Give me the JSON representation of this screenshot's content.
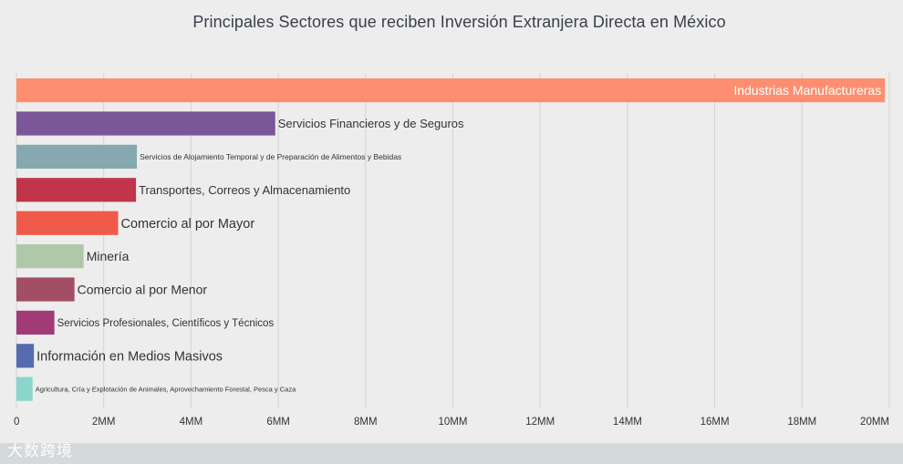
{
  "chart_data": {
    "type": "bar",
    "orientation": "horizontal",
    "title": "Principales Sectores que reciben Inversión Extranjera Directa en México",
    "categories": [
      "Industrias Manufactureras",
      "Servicios Financieros y de Seguros",
      "Servicios de Alojamiento Temporal y de Preparación de Alimentos y Bebidas",
      "Transportes, Correos y Almacenamiento",
      "Comercio al por Mayor",
      "Minería",
      "Comercio al por Menor",
      "Servicios Profesionales, Científicos y Técnicos",
      "Información en Medios Masivos",
      "Agricultura, Cría y Explotación de Animales, Aprovechamiento Forestal, Pesca y Caza"
    ],
    "values": [
      19900000,
      5930000,
      2760000,
      2740000,
      2330000,
      1540000,
      1330000,
      870000,
      400000,
      370000
    ],
    "colors": [
      "#fd8f70",
      "#7b5699",
      "#86a8b0",
      "#c13449",
      "#f05a4b",
      "#afc8aa",
      "#a24e65",
      "#a23a78",
      "#566aaf",
      "#8bd6cc"
    ],
    "x_ticks": [
      "0",
      "2MM",
      "4MM",
      "6MM",
      "8MM",
      "10MM",
      "12MM",
      "14MM",
      "16MM",
      "18MM",
      "20MM"
    ],
    "xlim": [
      0,
      20000000
    ],
    "grid": true,
    "xlabel": "",
    "ylabel": ""
  },
  "watermark": "大数跨境"
}
